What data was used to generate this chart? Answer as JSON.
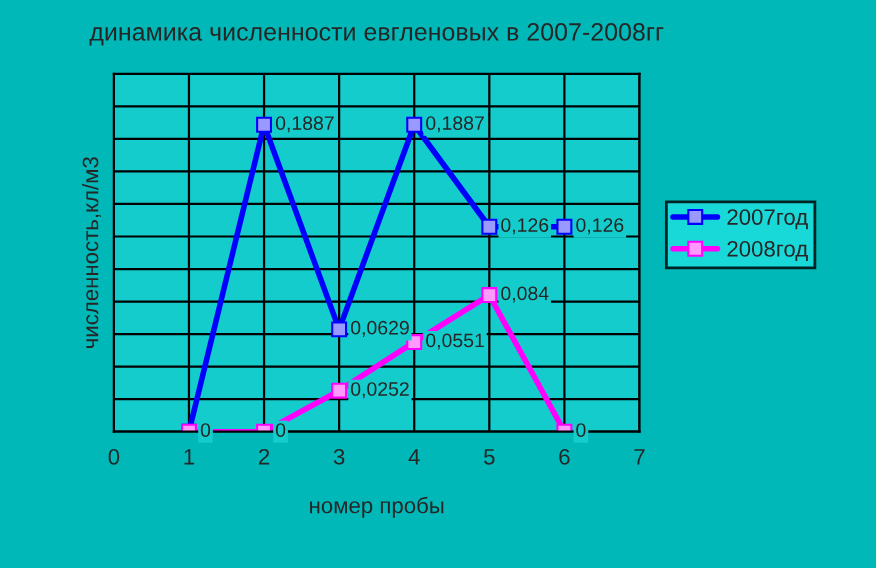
{
  "chart_data": {
    "type": "line",
    "title": "динамика численности евгленовых в 2007-2008гг",
    "xlabel": "номер пробы",
    "ylabel": "численность,кл/м3",
    "x": [
      1,
      2,
      3,
      4,
      5,
      6
    ],
    "series": [
      {
        "name": "2007год",
        "color": "#0000ff",
        "values": [
          0,
          0.1887,
          0.0629,
          0.1887,
          0.126,
          0.126
        ],
        "value_labels": [
          null,
          "0,1887",
          "0,0629",
          "0,1887",
          "0,126",
          "0,126"
        ]
      },
      {
        "name": "2008год",
        "color": "#ff00ff",
        "values": [
          0,
          0,
          0.0252,
          0.0551,
          0.084,
          0
        ],
        "value_labels": [
          "0",
          "0",
          "0,0252",
          "0,0551",
          "0,084",
          "0"
        ]
      }
    ],
    "xlim": [
      0,
      7
    ],
    "xticks": [
      0,
      1,
      2,
      3,
      4,
      5,
      6,
      7
    ],
    "ylim": [
      0,
      0.22
    ],
    "yticks": [
      {
        "value": 0,
        "label": null
      },
      {
        "value": 0.02,
        "label": null
      },
      {
        "value": 0.04,
        "label": null
      },
      {
        "value": 0.06,
        "label": null
      },
      {
        "value": 0.08,
        "label": null
      },
      {
        "value": 0.1,
        "label": null
      },
      {
        "value": 0.12,
        "label": null
      },
      {
        "value": 0.14,
        "label": null
      },
      {
        "value": 0.16,
        "label": null
      },
      {
        "value": 0.18,
        "label": null
      },
      {
        "value": 0.2,
        "label": null
      },
      {
        "value": 0.22,
        "label": null
      }
    ],
    "tick_labels": "x",
    "grid": true,
    "legend": "right",
    "marker": "square",
    "line_style": "solid"
  }
}
